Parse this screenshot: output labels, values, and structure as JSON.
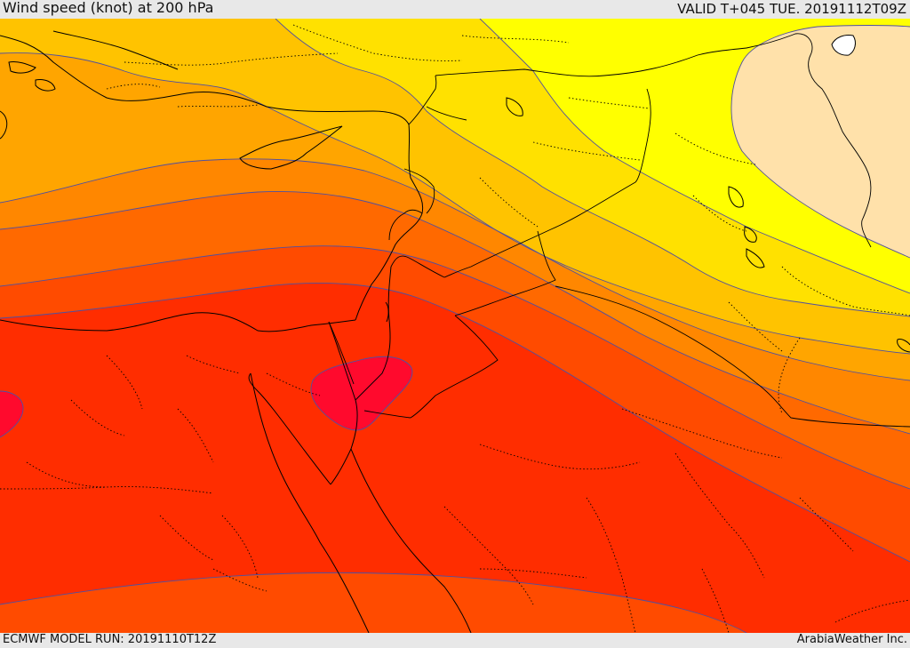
{
  "header": {
    "title": "Wind speed (knot) at 200 hPa",
    "valid": "VALID T+045 TUE. 20191112T09Z"
  },
  "footer": {
    "model_run": "ECMWF MODEL RUN: 20191110T12Z",
    "credit": "ArabiaWeather Inc."
  },
  "map": {
    "bands": [
      {
        "name": "band-light-yellow",
        "color": "#ffe1aa"
      },
      {
        "name": "band-yellow",
        "color": "#ffff00"
      },
      {
        "name": "band-gold",
        "color": "#ffe100"
      },
      {
        "name": "band-amber",
        "color": "#ffc300"
      },
      {
        "name": "band-orange-light",
        "color": "#ffa500"
      },
      {
        "name": "band-orange",
        "color": "#ff8700"
      },
      {
        "name": "band-dark-orange",
        "color": "#ff6900"
      },
      {
        "name": "band-red-orange",
        "color": "#ff4b00"
      },
      {
        "name": "band-red",
        "color": "#ff2d00"
      },
      {
        "name": "band-crimson",
        "color": "#ff0a2d"
      }
    ],
    "contour_color": "#5050a0",
    "border_color": "#000000"
  }
}
